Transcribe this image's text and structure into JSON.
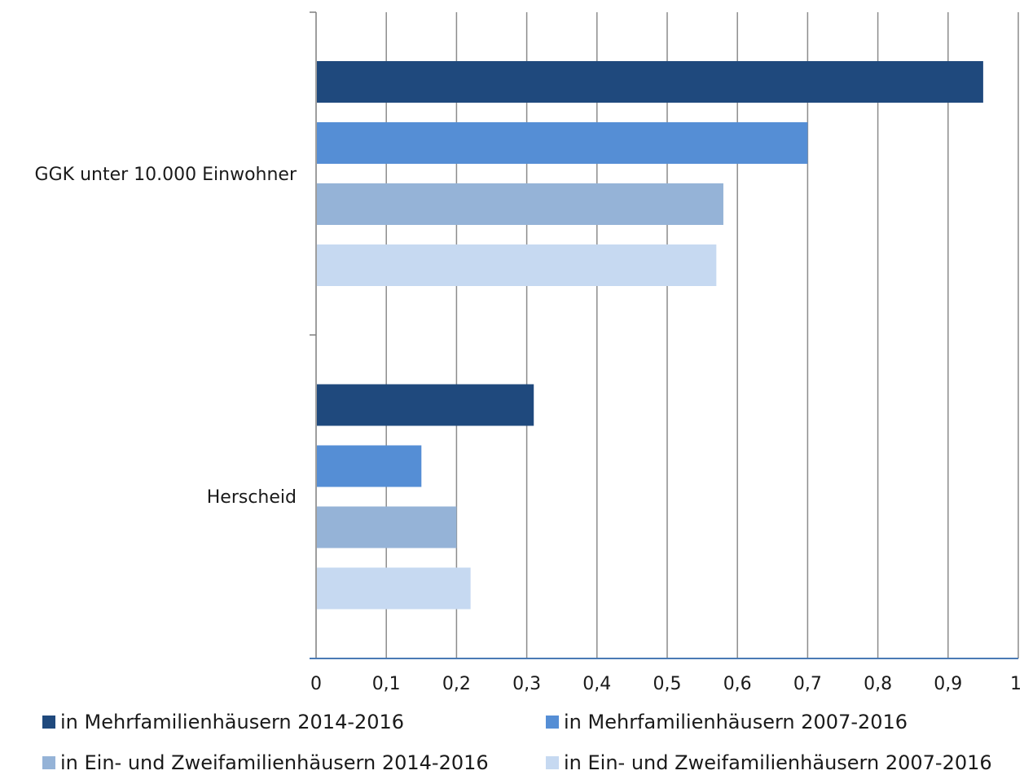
{
  "chart_data": {
    "type": "bar",
    "orientation": "horizontal",
    "categories": [
      "GGK unter 10.000 Einwohner",
      "Herscheid"
    ],
    "series": [
      {
        "name": "in Mehrfamilienhäusern 2014-2016",
        "color": "#1f497d",
        "values": [
          0.95,
          0.31
        ]
      },
      {
        "name": "in Mehrfamilienhäusern 2007-2016",
        "color": "#558ed5",
        "values": [
          0.7,
          0.15
        ]
      },
      {
        "name": "in Ein- und Zweifamilienhäusern 2014-2016",
        "color": "#95b3d7",
        "values": [
          0.58,
          0.2
        ]
      },
      {
        "name": "in Ein- und Zweifamilienhäusern 2007-2016",
        "color": "#c6d9f1",
        "values": [
          0.57,
          0.22
        ]
      }
    ],
    "xlim": [
      0,
      1
    ],
    "xticks": [
      "0",
      "0,1",
      "0,2",
      "0,3",
      "0,4",
      "0,5",
      "0,6",
      "0,7",
      "0,8",
      "0,9",
      "1"
    ],
    "grid": "vertical",
    "legend_position": "bottom"
  }
}
